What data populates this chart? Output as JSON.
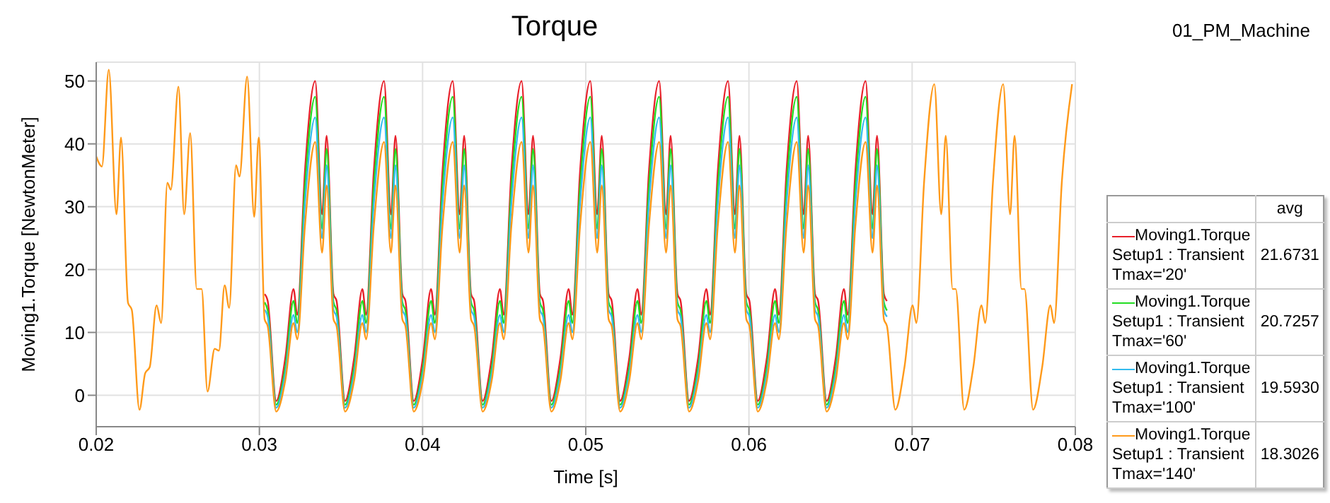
{
  "chart_data": {
    "type": "line",
    "title": "Torque",
    "xlabel": "Time [s]",
    "ylabel": "Moving1.Torque [NewtonMeter]",
    "legend_title": "avg",
    "annotations": [
      "01_PM_Machine",
      "21.6731",
      "20.7257",
      "19.5930",
      "18.3026"
    ],
    "xlim": [
      0.02,
      0.08
    ],
    "xticks": [
      0.02,
      0.03,
      0.04,
      0.05,
      0.06,
      0.07,
      0.08
    ],
    "ylim": [
      -5,
      53
    ],
    "yticks": [
      0,
      10,
      20,
      30,
      40,
      50
    ],
    "grid": true,
    "legend": "bottom right",
    "x": [
      0.02,
      0.02035,
      0.02077,
      0.02124,
      0.02152,
      0.02195,
      0.02218,
      0.02265,
      0.023,
      0.02328,
      0.0237,
      0.02398,
      0.02436,
      0.02457,
      0.02504,
      0.02539,
      0.02576,
      0.02616,
      0.02646,
      0.02682,
      0.02726,
      0.02752,
      0.02787,
      0.02815,
      0.02857,
      0.02878,
      0.02925,
      0.02968,
      0.02996,
      0.03032,
      0.03051,
      0.03103,
      0.03159,
      0.03209,
      0.03232,
      0.03279,
      0.03342,
      0.03384,
      0.03412,
      0.03454,
      0.03473,
      0.03525,
      0.03581,
      0.03631,
      0.03654,
      0.03701,
      0.03764,
      0.03806,
      0.03834,
      0.03876,
      0.03895,
      0.03946,
      0.04002,
      0.04052,
      0.04075,
      0.04122,
      0.04185,
      0.04227,
      0.04255,
      0.04297,
      0.04316,
      0.04368,
      0.04424,
      0.04474,
      0.04497,
      0.04544,
      0.04607,
      0.04649,
      0.04677,
      0.04719,
      0.04738,
      0.04789,
      0.04845,
      0.04895,
      0.04918,
      0.04965,
      0.05028,
      0.0507,
      0.05098,
      0.0514,
      0.05159,
      0.05211,
      0.05267,
      0.05317,
      0.0534,
      0.05387,
      0.0545,
      0.05492,
      0.0552,
      0.05562,
      0.05581,
      0.05633,
      0.05689,
      0.05739,
      0.05762,
      0.05809,
      0.05872,
      0.05914,
      0.05942,
      0.05984,
      0.06003,
      0.06054,
      0.0611,
      0.0616,
      0.06183,
      0.0623,
      0.06293,
      0.06335,
      0.06363,
      0.06405,
      0.06424,
      0.06476,
      0.06532,
      0.06582,
      0.06605,
      0.06652,
      0.06715,
      0.06757,
      0.06785,
      0.06827,
      0.06846,
      0.06897,
      0.06953,
      0.07003,
      0.07026,
      0.07073,
      0.07136,
      0.07178,
      0.07206,
      0.07248,
      0.07267,
      0.07319,
      0.07375,
      0.07425,
      0.07448,
      0.07495,
      0.07558,
      0.076,
      0.07628,
      0.0767,
      0.07689,
      0.07741,
      0.07797,
      0.07847,
      0.0787,
      0.07917,
      0.0798
    ],
    "series": [
      {
        "name": "Moving1.Torque\nSetup1 : Transient\nTmax='20'",
        "color": "#e8202a",
        "values": [
          null,
          null,
          null,
          null,
          null,
          null,
          null,
          null,
          null,
          null,
          null,
          null,
          null,
          null,
          null,
          null,
          null,
          null,
          null,
          null,
          null,
          null,
          null,
          null,
          null,
          null,
          null,
          null,
          null,
          16.1,
          15,
          -0.9,
          6,
          16.9,
          12.8,
          35.6,
          50,
          28.8,
          41.3,
          16.1,
          15,
          -0.9,
          6,
          16.9,
          12.8,
          35.6,
          50,
          28.8,
          41.3,
          16.1,
          15,
          -0.9,
          6,
          16.9,
          12.8,
          35.6,
          50,
          28.8,
          41.3,
          16.1,
          15,
          -0.9,
          6,
          16.9,
          12.8,
          35.6,
          50,
          28.8,
          41.3,
          16.1,
          15,
          -0.9,
          6,
          16.9,
          12.8,
          35.6,
          50,
          28.8,
          41.3,
          16.1,
          15,
          -0.9,
          6,
          16.9,
          12.8,
          35.6,
          50,
          28.8,
          41.3,
          16.1,
          15,
          -0.9,
          6,
          16.9,
          12.8,
          35.6,
          50,
          28.8,
          41.3,
          16.1,
          15,
          -0.9,
          6,
          16.9,
          12.8,
          35.6,
          50,
          28.8,
          41.3,
          16.1,
          15,
          -0.9,
          6,
          16.9,
          12.8,
          35.6,
          50,
          28.8,
          41.3,
          16.1,
          15,
          null,
          null,
          null,
          null,
          null,
          null,
          null,
          null,
          null,
          null,
          null,
          null,
          null,
          null,
          null,
          null,
          null,
          null,
          null,
          null,
          null,
          null,
          null,
          null,
          null,
          null
        ]
      },
      {
        "name": "Moving1.Torque\nSetup1 : Transient\nTmax='60'",
        "color": "#22dd22",
        "values": [
          null,
          null,
          null,
          null,
          null,
          null,
          null,
          null,
          null,
          null,
          null,
          null,
          null,
          null,
          null,
          null,
          null,
          null,
          null,
          null,
          null,
          null,
          null,
          null,
          null,
          null,
          null,
          null,
          null,
          14.8,
          13.5,
          -1.5,
          4.5,
          15,
          11.5,
          33.1,
          47.5,
          26.5,
          39.2,
          14.8,
          13.5,
          -1.5,
          4.5,
          15,
          11.5,
          33.1,
          47.5,
          26.5,
          39.2,
          14.8,
          13.5,
          -1.5,
          4.5,
          15,
          11.5,
          33.1,
          47.5,
          26.5,
          39.2,
          14.8,
          13.5,
          -1.5,
          4.5,
          15,
          11.5,
          33.1,
          47.5,
          26.5,
          39.2,
          14.8,
          13.5,
          -1.5,
          4.5,
          15,
          11.5,
          33.1,
          47.5,
          26.5,
          39.2,
          14.8,
          13.5,
          -1.5,
          4.5,
          15,
          11.5,
          33.1,
          47.5,
          26.5,
          39.2,
          14.8,
          13.5,
          -1.5,
          4.5,
          15,
          11.5,
          33.1,
          47.5,
          26.5,
          39.2,
          14.8,
          13.5,
          -1.5,
          4.5,
          15,
          11.5,
          33.1,
          47.5,
          26.5,
          39.2,
          14.8,
          13.5,
          -1.5,
          4.5,
          15,
          11.5,
          33.1,
          47.5,
          26.5,
          39.2,
          14.8,
          13.5,
          null,
          null,
          null,
          null,
          null,
          null,
          null,
          null,
          null,
          null,
          null,
          null,
          null,
          null,
          null,
          null,
          null,
          null,
          null,
          null,
          null,
          null,
          null,
          null,
          null,
          null
        ]
      },
      {
        "name": "Moving1.Torque\nSetup1 : Transient\nTmax='100'",
        "color": "#33bbee",
        "values": [
          null,
          null,
          null,
          null,
          null,
          null,
          null,
          null,
          null,
          null,
          null,
          null,
          null,
          null,
          null,
          null,
          null,
          null,
          null,
          null,
          null,
          null,
          null,
          null,
          null,
          null,
          null,
          null,
          null,
          13.6,
          12.5,
          -2,
          3.5,
          12.8,
          10,
          30.5,
          44.2,
          25,
          36.6,
          13.6,
          12.5,
          -2,
          3.5,
          12.8,
          10,
          30.5,
          44.2,
          25,
          36.6,
          13.6,
          12.5,
          -2,
          3.5,
          12.8,
          10,
          30.5,
          44.2,
          25,
          36.6,
          13.6,
          12.5,
          -2,
          3.5,
          12.8,
          10,
          30.5,
          44.2,
          25,
          36.6,
          13.6,
          12.5,
          -2,
          3.5,
          12.8,
          10,
          30.5,
          44.2,
          25,
          36.6,
          13.6,
          12.5,
          -2,
          3.5,
          12.8,
          10,
          30.5,
          44.2,
          25,
          36.6,
          13.6,
          12.5,
          -2,
          3.5,
          12.8,
          10,
          30.5,
          44.2,
          25,
          36.6,
          13.6,
          12.5,
          -2,
          3.5,
          12.8,
          10,
          30.5,
          44.2,
          25,
          36.6,
          13.6,
          12.5,
          -2,
          3.5,
          12.8,
          10,
          30.5,
          44.2,
          25,
          36.6,
          13.6,
          12.5,
          null,
          null,
          null,
          null,
          null,
          null,
          null,
          null,
          null,
          null,
          null,
          null,
          null,
          null,
          null,
          null,
          null,
          null,
          null,
          null,
          null,
          null,
          null,
          null,
          null,
          null
        ]
      },
      {
        "name": "Moving1.Torque\nSetup1 : Transient\nTmax='140'",
        "color": "#ff9a1a",
        "values": [
          38,
          36.4,
          51.8,
          28.8,
          41,
          14.7,
          13.6,
          -2.3,
          3.5,
          4.5,
          14.3,
          11.5,
          33.8,
          32.7,
          49.1,
          28.8,
          41.7,
          16.9,
          16.9,
          0.6,
          7.4,
          7.1,
          17.5,
          13.9,
          36.6,
          34.8,
          50.7,
          28.4,
          41,
          12.1,
          11,
          -2.6,
          2.4,
          11.5,
          8.9,
          26.9,
          40.3,
          22.7,
          33.4,
          12.1,
          11,
          -2.6,
          2.4,
          11.5,
          8.9,
          26.9,
          40.3,
          22.7,
          33.4,
          12.1,
          11,
          -2.6,
          2.4,
          11.5,
          8.9,
          26.9,
          40.3,
          22.7,
          33.4,
          12.1,
          11,
          -2.6,
          2.4,
          11.5,
          8.9,
          26.9,
          40.3,
          22.7,
          33.4,
          12.1,
          11,
          -2.6,
          2.4,
          11.5,
          8.9,
          26.9,
          40.3,
          22.7,
          33.4,
          12.1,
          11,
          -2.6,
          2.4,
          11.5,
          8.9,
          26.9,
          40.3,
          22.7,
          33.4,
          12.1,
          11,
          -2.6,
          2.4,
          11.5,
          8.9,
          26.9,
          40.3,
          22.7,
          33.4,
          12.1,
          11,
          -2.6,
          2.4,
          11.5,
          8.9,
          26.9,
          40.3,
          22.7,
          33.4,
          12.1,
          11,
          -2.6,
          2.4,
          11.5,
          8.9,
          26.9,
          40.3,
          22.7,
          33.4,
          12.1,
          11,
          -2.3,
          4.5,
          14.3,
          11.5,
          33.8,
          49.5,
          28.8,
          41.3,
          16.9,
          16.9,
          -2.3,
          4.5,
          14.3,
          11.5,
          33.8,
          49.5,
          28.8,
          41.3,
          16.9,
          16.9,
          -2.3,
          4.5,
          14.3,
          11.5,
          33.8,
          49.5
        ]
      }
    ]
  }
}
